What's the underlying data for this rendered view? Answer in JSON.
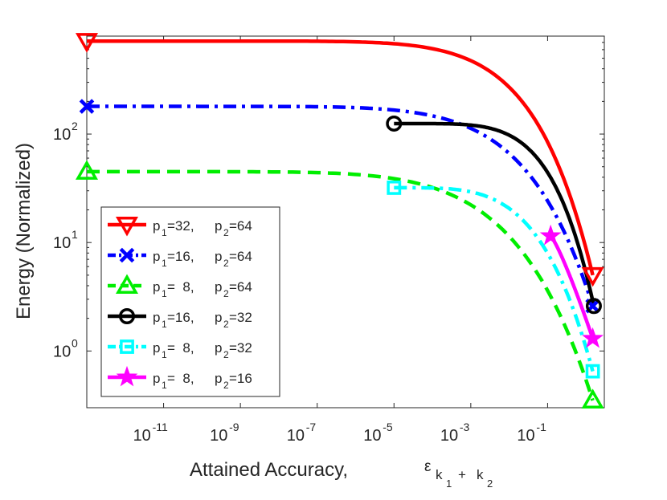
{
  "chart_data": {
    "type": "line",
    "title": "",
    "xlabel": "Attained Accuracy,",
    "xlabel_symbol": {
      "base": "ε",
      "sub_a": "k",
      "sub_a1": "1",
      "plus": "+",
      "sub_b": "k",
      "sub_b2": "2"
    },
    "ylabel": "Energy (Normalized)",
    "x_scale": "log",
    "y_scale": "log",
    "xlim": [
      1e-13,
      3
    ],
    "ylim": [
      0.3,
      800
    ],
    "x_ticks": [
      {
        "exp": "-11",
        "value": 1e-11
      },
      {
        "exp": "-9",
        "value": 1e-09
      },
      {
        "exp": "-7",
        "value": 1e-07
      },
      {
        "exp": "-5",
        "value": 1e-05
      },
      {
        "exp": "-3",
        "value": 0.001
      },
      {
        "exp": "-1",
        "value": 0.1
      }
    ],
    "y_ticks": [
      {
        "exp": "0",
        "value": 1
      },
      {
        "exp": "1",
        "value": 10
      },
      {
        "exp": "2",
        "value": 100
      }
    ],
    "tick_base": "10",
    "grid": false,
    "legend_position": "lower-left",
    "series": [
      {
        "label": {
          "a": "p",
          "a_sub": "1",
          "a_val": "=32,",
          "b": "p",
          "b_sub": "2",
          "b_val": "=64"
        },
        "color": "#ff0000",
        "dash": "solid",
        "marker": "triangle-down",
        "start": [
          1e-13,
          720
        ],
        "end": [
          1.5,
          5
        ],
        "curve": 9
      },
      {
        "label": {
          "a": "p",
          "a_sub": "1",
          "a_val": "=16,",
          "b": "p",
          "b_sub": "2",
          "b_val": "=64"
        },
        "color": "#0000ff",
        "dash": "dashdot",
        "marker": "x",
        "start": [
          1e-13,
          180
        ],
        "end": [
          1.5,
          2.6
        ],
        "curve": 8
      },
      {
        "label": {
          "a": "p",
          "a_sub": "1",
          "a_val": "=  8,",
          "b": "p",
          "b_sub": "2",
          "b_val": "=64"
        },
        "color": "#00ee00",
        "dash": "dashed",
        "marker": "triangle-up",
        "start": [
          1e-13,
          45
        ],
        "end": [
          1.5,
          0.35
        ],
        "curve": 7
      },
      {
        "label": {
          "a": "p",
          "a_sub": "1",
          "a_val": "=16,",
          "b": "p",
          "b_sub": "2",
          "b_val": "=32"
        },
        "color": "#000000",
        "dash": "solid",
        "marker": "circle",
        "start": [
          1e-05,
          125
        ],
        "end": [
          1.6,
          2.6
        ],
        "curve": 5
      },
      {
        "label": {
          "a": "p",
          "a_sub": "1",
          "a_val": "=  8,",
          "b": "p",
          "b_sub": "2",
          "b_val": "=32"
        },
        "color": "#00ffff",
        "dash": "dashdot",
        "marker": "square",
        "start": [
          1e-05,
          32
        ],
        "end": [
          1.5,
          0.65
        ],
        "curve": 4
      },
      {
        "label": {
          "a": "p",
          "a_sub": "1",
          "a_val": "=  8,",
          "b": "p",
          "b_sub": "2",
          "b_val": "=16"
        },
        "color": "#ff00ff",
        "dash": "solid",
        "marker": "pentagram",
        "start": [
          0.12,
          11.5
        ],
        "end": [
          1.5,
          1.3
        ],
        "curve": 1.2
      }
    ]
  }
}
